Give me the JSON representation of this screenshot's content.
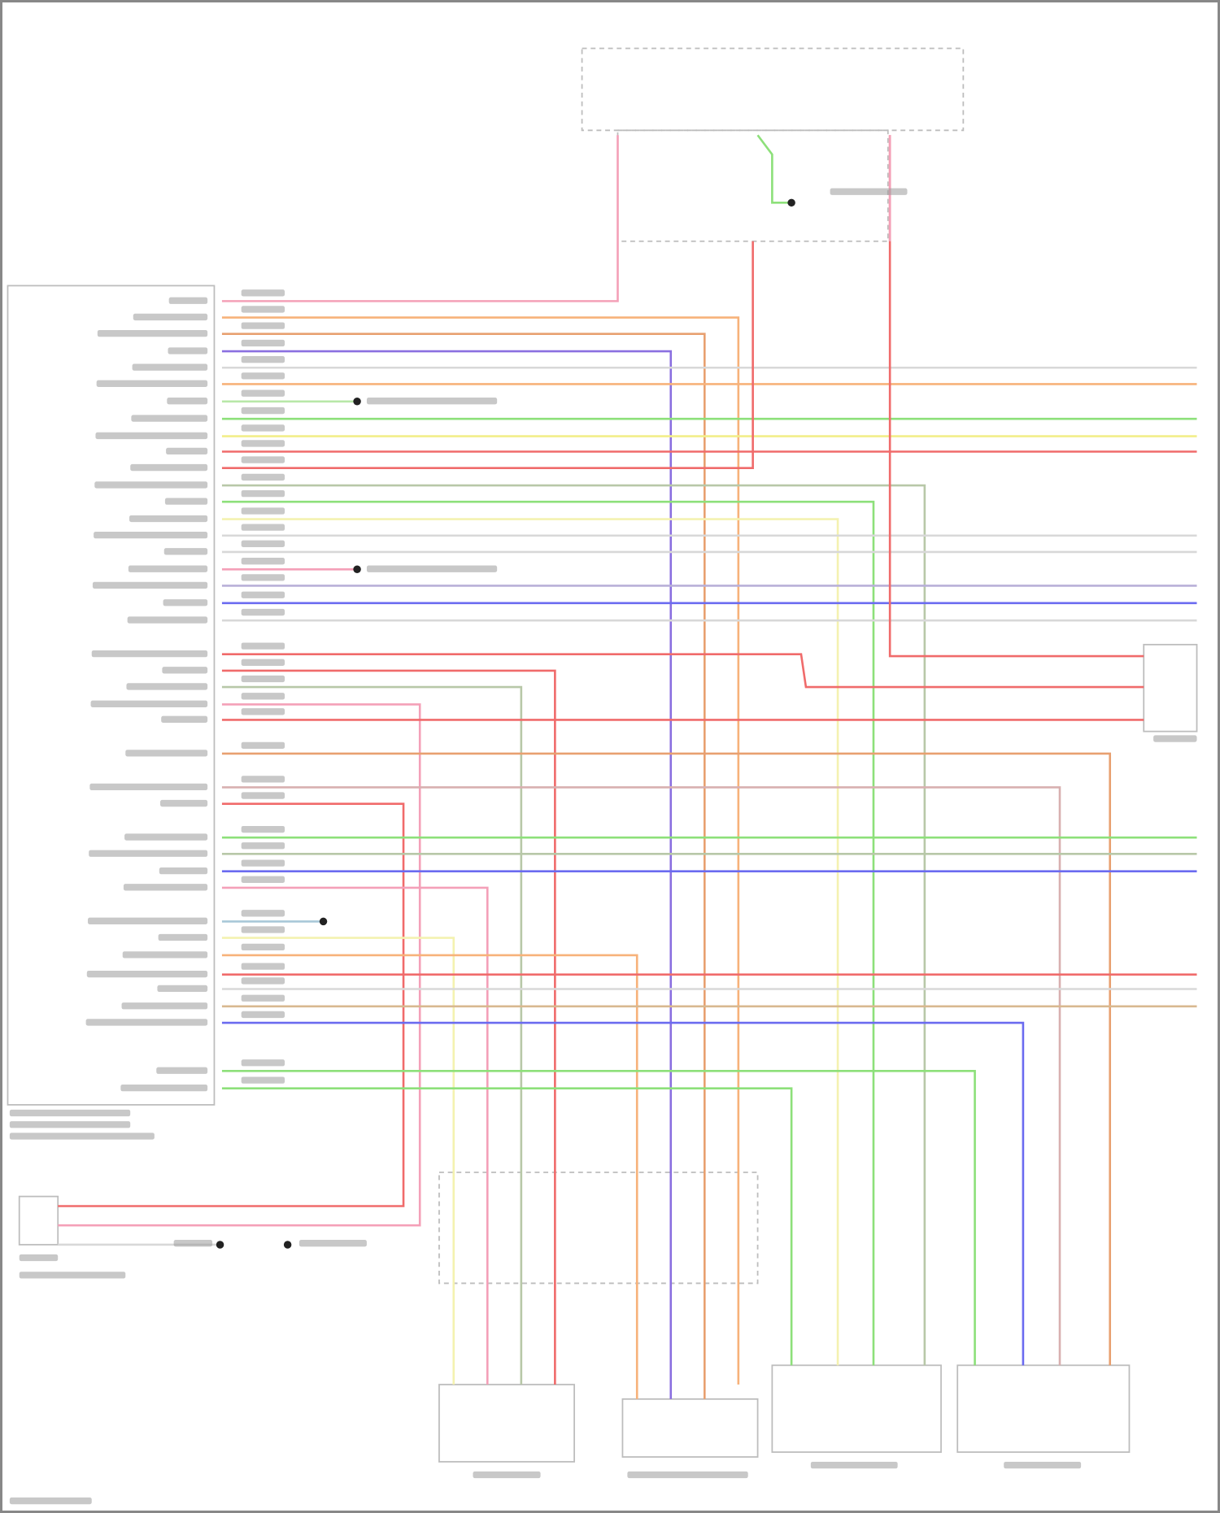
{
  "diagram": {
    "title": "",
    "colors": {
      "pink": "#f4a0b8",
      "orange": "#f7b27a",
      "dark_orange": "#e8a070",
      "purple": "#8a6fe0",
      "light_grey": "#d8d8d8",
      "green": "#8de07a",
      "light_green": "#b8e8a8",
      "yellow": "#f2ee8a",
      "light_yellow": "#f4f2b0",
      "red": "#f06b6b",
      "grey_green": "#b8c8a8",
      "grey_purple": "#b8b0d8",
      "blue": "#6b6bf0",
      "grey_pink": "#d8b0b0",
      "light_blue": "#a8c8d8",
      "tan": "#d8b890",
      "frame": "#bdbdbd",
      "splice": "#222222"
    },
    "components": [
      {
        "id": "fuse-block",
        "icon": "fuse-block-icon"
      },
      {
        "id": "main-connector",
        "icon": "connector-icon"
      },
      {
        "id": "bottom-left-connector",
        "icon": "connector-icon"
      },
      {
        "id": "right-connector",
        "icon": "connector-icon"
      },
      {
        "id": "seat-connector-1",
        "icon": "connector-icon"
      },
      {
        "id": "seat-connector-2",
        "icon": "connector-icon"
      },
      {
        "id": "seat-connector-3",
        "icon": "connector-icon"
      },
      {
        "id": "seat-connector-4",
        "icon": "connector-icon"
      }
    ]
  }
}
